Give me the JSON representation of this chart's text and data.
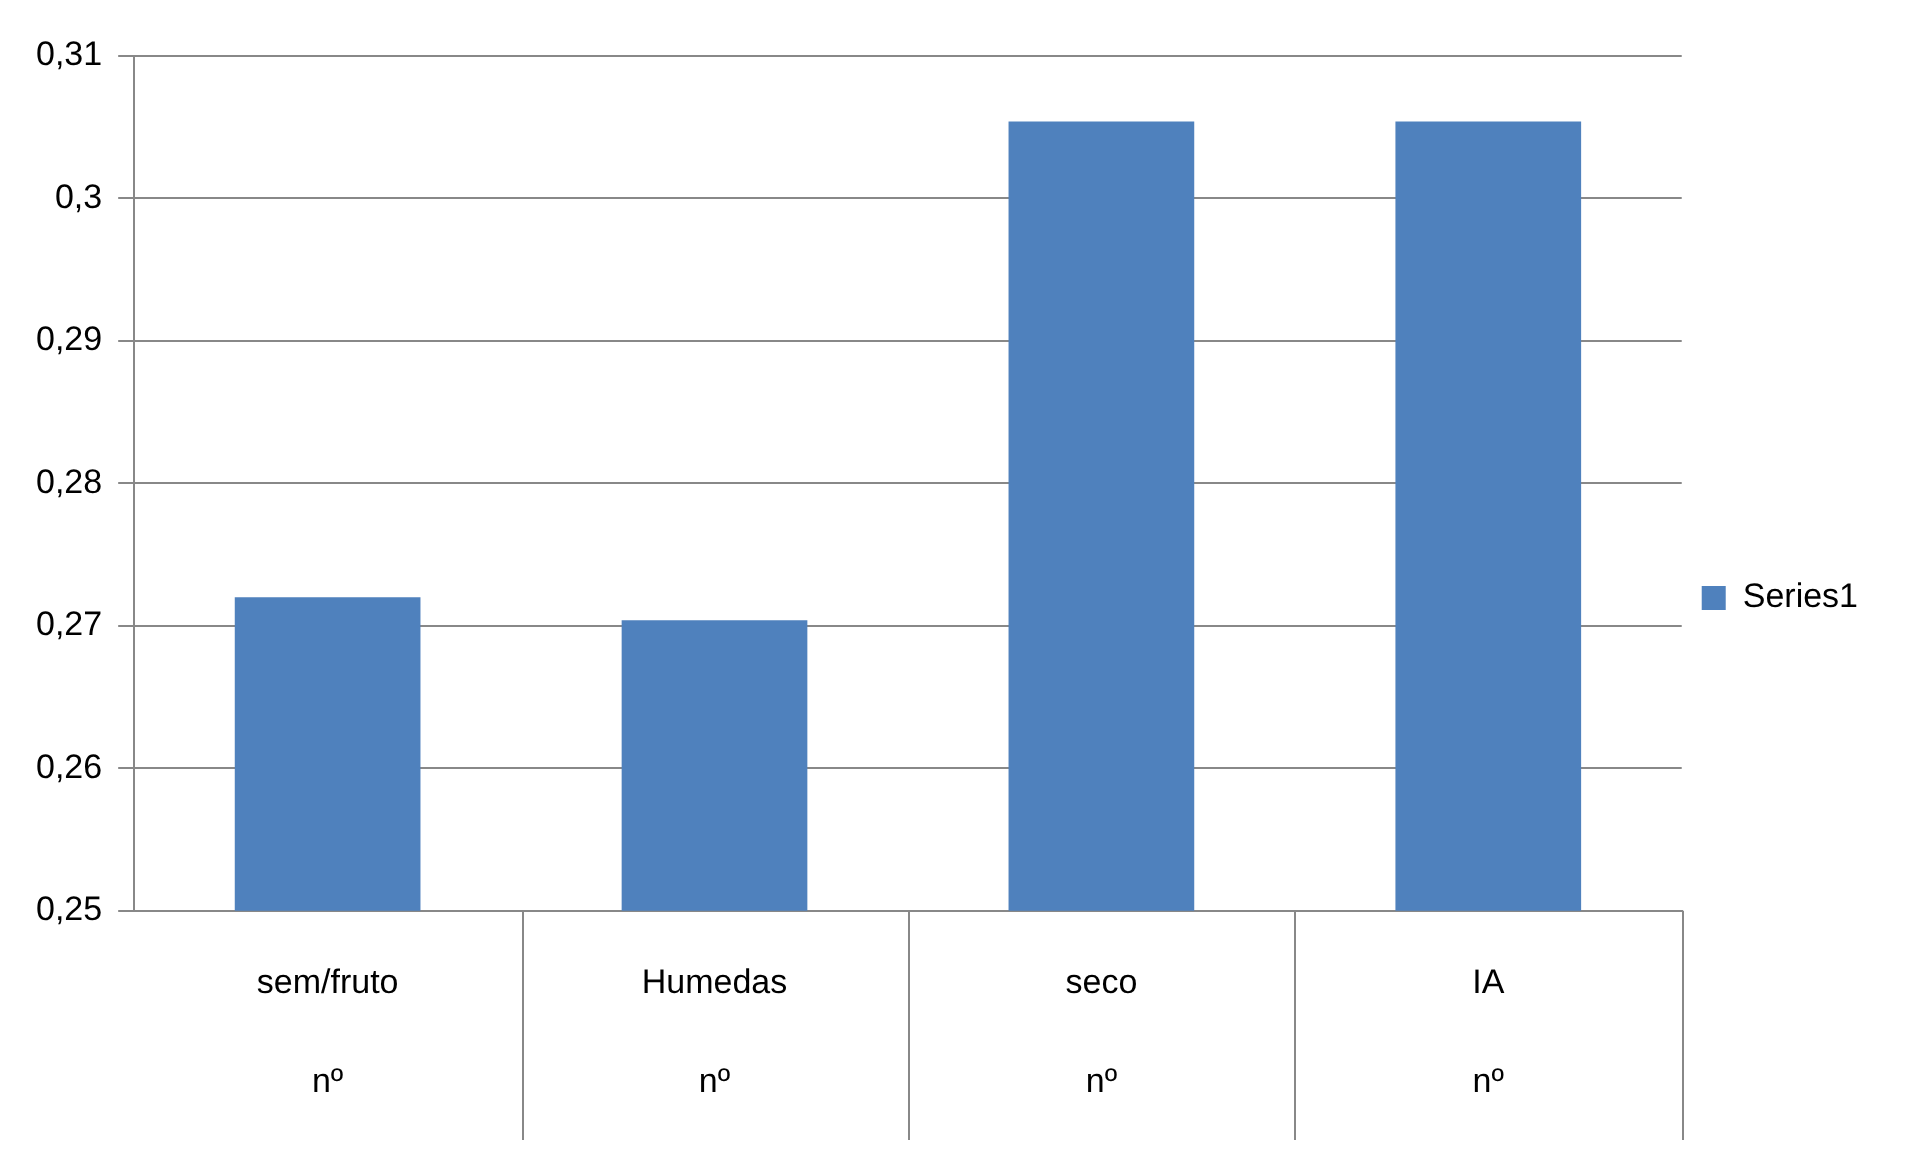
{
  "chart_data": {
    "type": "bar",
    "categories": [
      "sem/fruto\nnº",
      "Humedas\nnº",
      "seco\nnº",
      "IA\nnº"
    ],
    "series": [
      {
        "name": "Series1",
        "color": "#4f81bd",
        "values": [
          0.272,
          0.2704,
          0.3054,
          0.3054
        ]
      }
    ],
    "ylim": [
      0.25,
      0.31
    ],
    "yticks": [
      {
        "value": 0.25,
        "label": "0,25"
      },
      {
        "value": 0.26,
        "label": "0,26"
      },
      {
        "value": 0.27,
        "label": "0,27"
      },
      {
        "value": 0.28,
        "label": "0,28"
      },
      {
        "value": 0.29,
        "label": "0,29"
      },
      {
        "value": 0.3,
        "label": "0,3"
      },
      {
        "value": 0.31,
        "label": "0,31"
      }
    ],
    "grid": "y",
    "legend": "right"
  }
}
